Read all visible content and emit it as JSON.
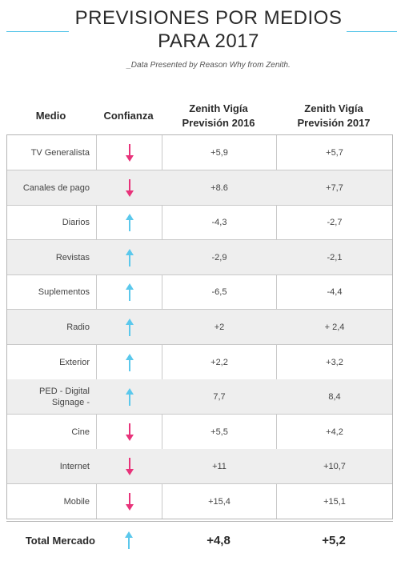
{
  "title": {
    "line1": "PREVISIONES POR MEDIOS",
    "line2": "PARA 2017",
    "subtitle": "_Data Presented by Reason Why from Zenith."
  },
  "colors": {
    "up": "#5bc8ec",
    "down": "#e8337a",
    "accent_line": "#4fc3e8"
  },
  "headers": {
    "medio": "Medio",
    "confianza": "Confianza",
    "v2016_line1": "Zenith Vigía",
    "v2016_line2": "Previsión 2016",
    "v2017_line1": "Zenith Vigía",
    "v2017_line2": "Previsión 2017"
  },
  "rows": [
    {
      "medio": "TV Generalista",
      "medio2": "",
      "trend": "down",
      "v2016": "+5,9",
      "v2017": "+5,7"
    },
    {
      "medio": "Canales de pago",
      "medio2": "",
      "trend": "down",
      "v2016": "+8.6",
      "v2017": "+7,7"
    },
    {
      "medio": "Diarios",
      "medio2": "",
      "trend": "up",
      "v2016": "-4,3",
      "v2017": "-2,7"
    },
    {
      "medio": "Revistas",
      "medio2": "",
      "trend": "up",
      "v2016": "-2,9",
      "v2017": "-2,1"
    },
    {
      "medio": "Suplementos",
      "medio2": "",
      "trend": "up",
      "v2016": "-6,5",
      "v2017": "-4,4"
    },
    {
      "medio": "Radio",
      "medio2": "",
      "trend": "up",
      "v2016": "+2",
      "v2017": "+ 2,4"
    },
    {
      "medio": "Exterior",
      "medio2": "",
      "trend": "up",
      "v2016": "+2,2",
      "v2017": "+3,2"
    },
    {
      "medio": "PED - Digital",
      "medio2": "Signage -",
      "trend": "up",
      "v2016": "7,7",
      "v2017": "8,4"
    },
    {
      "medio": "Cine",
      "medio2": "",
      "trend": "down",
      "v2016": "+5,5",
      "v2017": "+4,2"
    },
    {
      "medio": "Internet",
      "medio2": "",
      "trend": "down",
      "v2016": "+11",
      "v2017": "+10,7"
    },
    {
      "medio": "Mobile",
      "medio2": "",
      "trend": "down",
      "v2016": "+15,4",
      "v2017": "+15,1"
    }
  ],
  "total": {
    "label": "Total Mercado",
    "trend": "up",
    "v2016": "+4,8",
    "v2017": "+5,2"
  }
}
